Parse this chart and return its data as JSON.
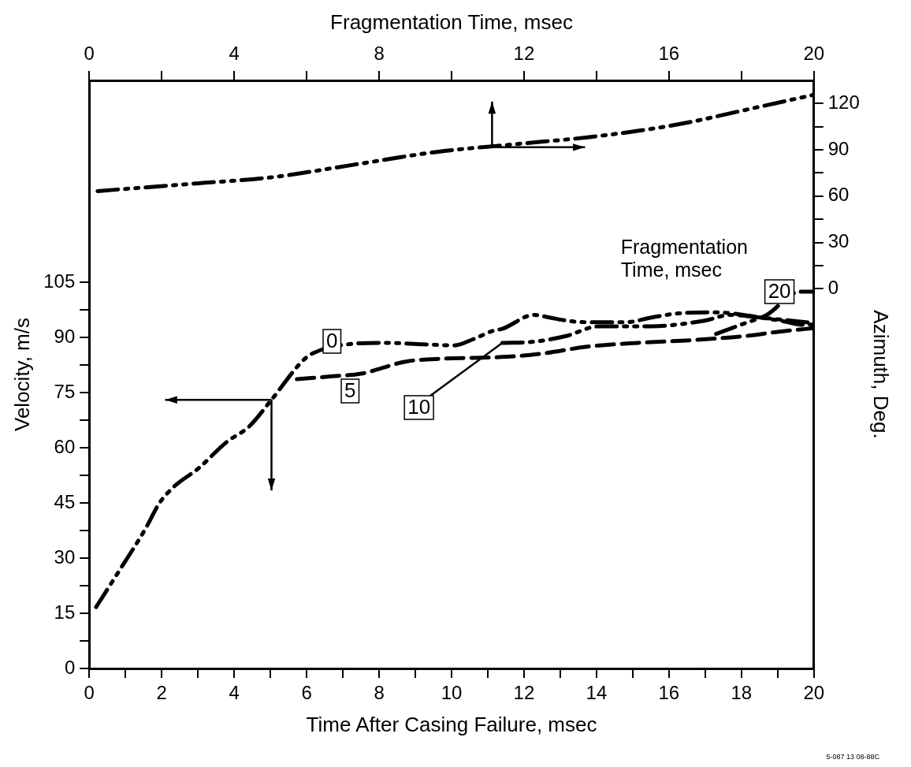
{
  "chart_data": {
    "type": "line",
    "xlabel": "Time After Casing Failure, msec",
    "x2label": "Fragmentation Time, msec",
    "ylabel": "Velocity, m/s",
    "y2label": "Azimuth, Deg.",
    "xlim": [
      0,
      20
    ],
    "xticks": [
      0,
      {
        "value": 1,
        "label": null
      },
      2,
      {
        "value": 3,
        "label": null
      },
      4,
      {
        "value": 5,
        "label": null
      },
      6,
      {
        "value": 7,
        "label": null
      },
      8,
      {
        "value": 9,
        "label": null
      },
      10,
      {
        "value": 11,
        "label": null
      },
      12,
      {
        "value": 13,
        "label": null
      },
      14,
      {
        "value": 15,
        "label": null
      },
      16,
      {
        "value": 17,
        "label": null
      },
      18,
      {
        "value": 19,
        "label": null
      },
      20
    ],
    "x2lim": [
      0,
      20
    ],
    "x2ticks": [
      0,
      {
        "value": 2,
        "label": null
      },
      4,
      {
        "value": 6,
        "label": null
      },
      8,
      {
        "value": 10,
        "label": null
      },
      12,
      {
        "value": 14,
        "label": null
      },
      16,
      {
        "value": 18,
        "label": null
      },
      20
    ],
    "ylim": [
      0,
      160
    ],
    "yticks": [
      0,
      {
        "value": 7.5,
        "label": null
      },
      15,
      {
        "value": 22.5,
        "label": null
      },
      30,
      {
        "value": 37.5,
        "label": null
      },
      45,
      {
        "value": 52.5,
        "label": null
      },
      60,
      {
        "value": 67.5,
        "label": null
      },
      75,
      {
        "value": 82.5,
        "label": null
      },
      90,
      {
        "value": 97.5,
        "label": null
      },
      105
    ],
    "y2lim": [
      -246,
      135
    ],
    "y2ticks": [
      0,
      {
        "value": 15,
        "label": null
      },
      30,
      {
        "value": 45,
        "label": null
      },
      60,
      {
        "value": 75,
        "label": null
      },
      90,
      {
        "value": 105,
        "label": null
      },
      120
    ],
    "grid": false,
    "legend": false,
    "marker": "none",
    "series": [
      {
        "name": "0",
        "color": "#000000",
        "line_style": "dashdot",
        "x": [
          0.19,
          0.46,
          0.92,
          1.54,
          1.93,
          2.32,
          3.02,
          3.79,
          4.41,
          5.03,
          5.88,
          6.18,
          7.35,
          8.13,
          9.21,
          10.07,
          10.6,
          11.15,
          11.4,
          12.27,
          12.7,
          13.2,
          13.79,
          14.8,
          15.52,
          16.25,
          17.33,
          18.05,
          18.7,
          19.1,
          19.7,
          20
        ],
        "values": [
          16.7,
          20.9,
          28.0,
          37.8,
          44.9,
          49.3,
          54.5,
          61.6,
          65.8,
          73.1,
          83.6,
          85.8,
          88.4,
          88.6,
          88.2,
          87.9,
          89.6,
          91.9,
          92.4,
          96.2,
          95.5,
          94.6,
          94.2,
          94.2,
          95.5,
          96.6,
          96.9,
          96.2,
          95.2,
          94.6,
          93.5,
          93.6
        ]
      },
      {
        "name": "5",
        "color": "#000000",
        "line_style": "dashed",
        "x": [
          5.73,
          6.72,
          7.5,
          8.74,
          9.8,
          11.54,
          12.6,
          13.7,
          15.16,
          16.6,
          18.05,
          19.1,
          20
        ],
        "values": [
          78.7,
          79.5,
          80.2,
          83.5,
          84.3,
          84.8,
          85.8,
          87.5,
          88.6,
          89.3,
          90.4,
          91.7,
          92.6
        ]
      },
      {
        "name": "10",
        "color": "#000000",
        "line_style": "dashdot",
        "x": [
          11.4,
          12.27,
          13.14,
          14.08,
          15.5,
          16.96,
          17.7,
          18.5,
          20
        ],
        "values": [
          88.6,
          88.9,
          90.4,
          93.1,
          93.1,
          94.6,
          96.2,
          95.5,
          94.0
        ]
      },
      {
        "name": "20",
        "color": "#000000",
        "line_style": "dashdot",
        "x": [
          17.3,
          18.0,
          18.7,
          19.6,
          20
        ],
        "values": [
          91.0,
          93.6,
          96.2,
          102.5,
          102.5
        ]
      },
      {
        "color": "#000000",
        "line_style": "dashdot",
        "axis": "y2",
        "x": [
          0.23,
          2.86,
          5.03,
          7.28,
          9.6,
          11.77,
          14.08,
          16.25,
          18.42,
          20
        ],
        "values": [
          63.3,
          68.1,
          72.2,
          80.3,
          88.7,
          93.7,
          99.0,
          106.5,
          117.5,
          125.7
        ]
      }
    ],
    "annotations": [
      "Fragmentation Time, msec",
      "5-087 13 08-88C"
    ]
  }
}
